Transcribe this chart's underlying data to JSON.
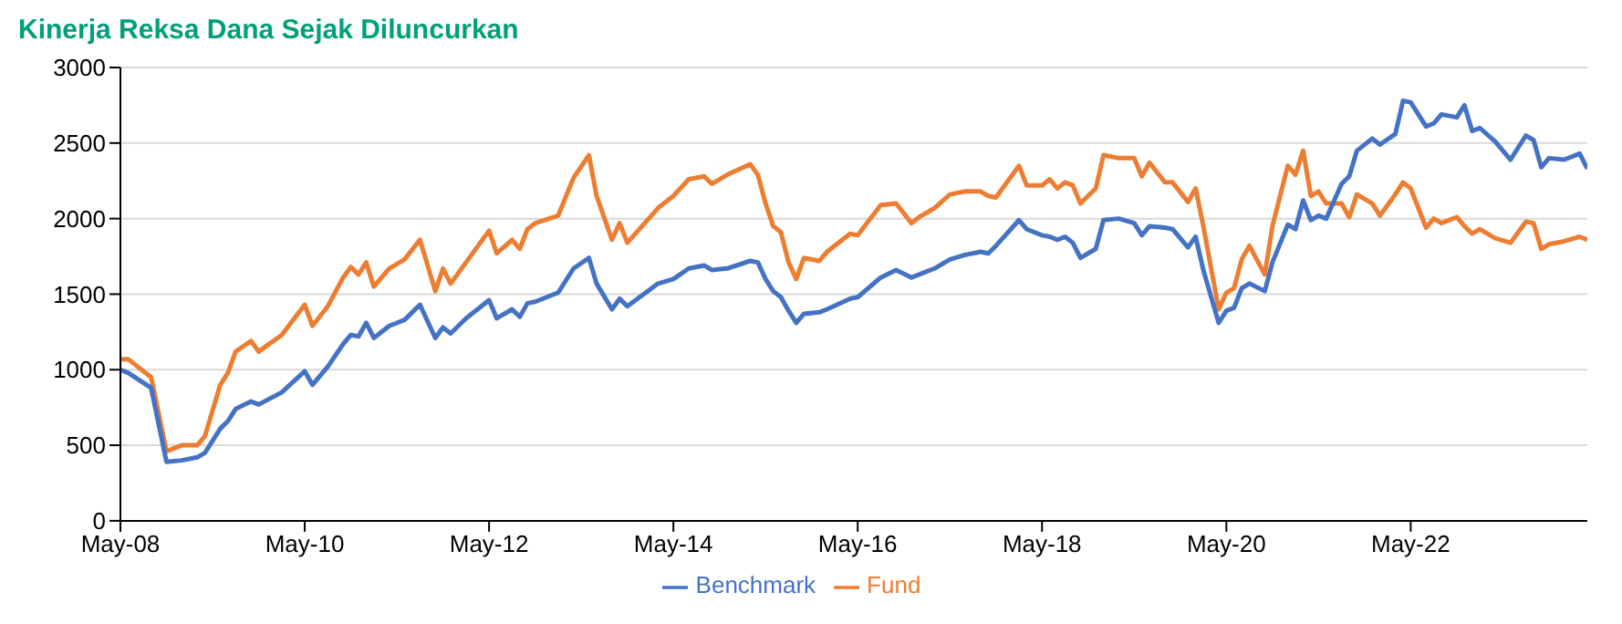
{
  "chart_data": {
    "type": "line",
    "title": "Kinerja Reksa Dana Sejak Diluncurkan",
    "x": [
      "2008-05",
      "2008-06",
      "2008-09",
      "2008-11",
      "2009-01",
      "2009-03",
      "2009-04",
      "2009-06",
      "2009-07",
      "2009-08",
      "2009-10",
      "2009-11",
      "2010-02",
      "2010-05",
      "2010-06",
      "2010-08",
      "2010-10",
      "2010-11",
      "2010-12",
      "2011-01",
      "2011-02",
      "2011-04",
      "2011-06",
      "2011-08",
      "2011-10",
      "2011-11",
      "2011-12",
      "2012-02",
      "2012-05",
      "2012-06",
      "2012-08",
      "2012-09",
      "2012-10",
      "2012-11",
      "2013-02",
      "2013-04",
      "2013-06",
      "2013-07",
      "2013-09",
      "2013-10",
      "2013-11",
      "2014-03",
      "2014-05",
      "2014-07",
      "2014-09",
      "2014-10",
      "2014-12",
      "2015-03",
      "2015-04",
      "2015-05",
      "2015-06",
      "2015-07",
      "2015-08",
      "2015-09",
      "2015-10",
      "2015-12",
      "2016-01",
      "2016-04",
      "2016-05",
      "2016-08",
      "2016-10",
      "2016-12",
      "2017-01",
      "2017-03",
      "2017-05",
      "2017-07",
      "2017-09",
      "2017-10",
      "2017-11",
      "2018-02",
      "2018-03",
      "2018-05",
      "2018-06",
      "2018-07",
      "2018-08",
      "2018-09",
      "2018-10",
      "2018-12",
      "2019-01",
      "2019-03",
      "2019-05",
      "2019-06",
      "2019-07",
      "2019-09",
      "2019-10",
      "2019-12",
      "2020-01",
      "2020-02",
      "2020-04",
      "2020-05",
      "2020-06",
      "2020-07",
      "2020-08",
      "2020-10",
      "2020-11",
      "2021-01",
      "2021-02",
      "2021-03",
      "2021-04",
      "2021-05",
      "2021-06",
      "2021-08",
      "2021-09",
      "2021-10",
      "2021-12",
      "2022-01",
      "2022-03",
      "2022-04",
      "2022-05",
      "2022-07",
      "2022-08",
      "2022-09",
      "2022-11",
      "2022-12",
      "2023-01",
      "2023-02",
      "2023-04",
      "2023-06",
      "2023-08",
      "2023-09",
      "2023-10",
      "2023-11",
      "2024-01",
      "2024-03",
      "2024-04"
    ],
    "series": [
      {
        "name": "Fund",
        "color": "#ed7d31",
        "values": [
          1070,
          1070,
          950,
          460,
          500,
          500,
          560,
          900,
          980,
          1120,
          1190,
          1120,
          1230,
          1430,
          1290,
          1420,
          1610,
          1680,
          1630,
          1710,
          1550,
          1670,
          1730,
          1860,
          1520,
          1670,
          1570,
          1710,
          1920,
          1770,
          1860,
          1800,
          1930,
          1970,
          2020,
          2270,
          2420,
          2150,
          1860,
          1970,
          1840,
          2070,
          2150,
          2260,
          2280,
          2230,
          2290,
          2360,
          2290,
          2100,
          1950,
          1910,
          1710,
          1600,
          1740,
          1720,
          1780,
          1900,
          1890,
          2090,
          2100,
          1970,
          2010,
          2070,
          2160,
          2180,
          2180,
          2150,
          2140,
          2350,
          2220,
          2220,
          2260,
          2200,
          2240,
          2220,
          2100,
          2200,
          2420,
          2400,
          2400,
          2280,
          2370,
          2240,
          2240,
          2110,
          2200,
          1950,
          1400,
          1510,
          1540,
          1730,
          1820,
          1630,
          1950,
          2350,
          2290,
          2450,
          2150,
          2180,
          2100,
          2100,
          2010,
          2160,
          2100,
          2020,
          2160,
          2240,
          2200,
          1940,
          2000,
          1970,
          2010,
          1950,
          1900,
          1930,
          1870,
          1840,
          1980,
          1970,
          1800,
          1830,
          1850,
          1880,
          1860
        ]
      },
      {
        "name": "Benchmark",
        "color": "#4472c4",
        "values": [
          1000,
          980,
          880,
          390,
          400,
          420,
          450,
          610,
          660,
          740,
          790,
          770,
          850,
          990,
          900,
          1020,
          1170,
          1230,
          1220,
          1310,
          1210,
          1290,
          1330,
          1430,
          1210,
          1280,
          1240,
          1340,
          1460,
          1340,
          1400,
          1350,
          1440,
          1450,
          1510,
          1670,
          1740,
          1570,
          1400,
          1470,
          1420,
          1570,
          1600,
          1670,
          1690,
          1660,
          1670,
          1720,
          1710,
          1600,
          1520,
          1480,
          1390,
          1310,
          1370,
          1380,
          1400,
          1470,
          1480,
          1610,
          1660,
          1610,
          1630,
          1670,
          1730,
          1760,
          1780,
          1770,
          1820,
          1990,
          1930,
          1890,
          1880,
          1860,
          1880,
          1840,
          1740,
          1800,
          1990,
          2000,
          1970,
          1890,
          1950,
          1940,
          1930,
          1810,
          1880,
          1660,
          1310,
          1390,
          1410,
          1540,
          1570,
          1520,
          1710,
          1960,
          1930,
          2120,
          1990,
          2020,
          2000,
          2230,
          2280,
          2450,
          2530,
          2490,
          2560,
          2780,
          2770,
          2610,
          2630,
          2690,
          2670,
          2750,
          2580,
          2600,
          2510,
          2390,
          2550,
          2520,
          2340,
          2400,
          2390,
          2430,
          2330
        ]
      }
    ],
    "xlim": [
      "2008-05",
      "2024-04"
    ],
    "xticks": [
      {
        "value": "2008-05",
        "label": "May-08"
      },
      {
        "value": "2010-05",
        "label": "May-10"
      },
      {
        "value": "2012-05",
        "label": "May-12"
      },
      {
        "value": "2014-05",
        "label": "May-14"
      },
      {
        "value": "2016-05",
        "label": "May-16"
      },
      {
        "value": "2018-05",
        "label": "May-18"
      },
      {
        "value": "2020-05",
        "label": "May-20"
      },
      {
        "value": "2022-05",
        "label": "May-22"
      }
    ],
    "ylim": [
      0,
      3000
    ],
    "yticks": [
      0,
      500,
      1000,
      1500,
      2000,
      2500,
      3000
    ],
    "grid": "y",
    "legend": "bottom",
    "marker": "none",
    "line_style": "solid"
  }
}
